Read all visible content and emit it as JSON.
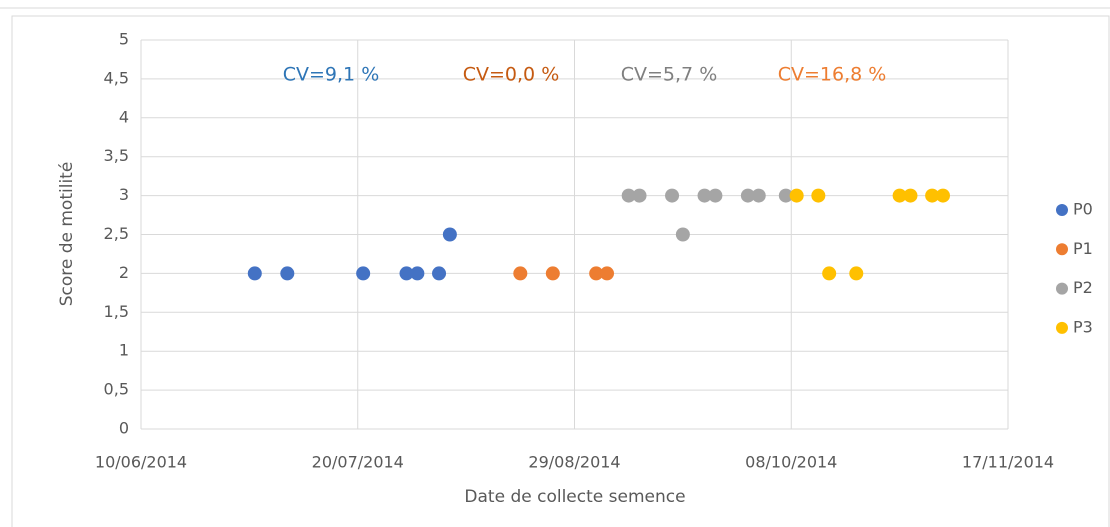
{
  "chart_data": {
    "type": "scatter",
    "y_label": "Score de motilité",
    "x_label": "Date de collecte semence",
    "xlim": [
      "2014-06-10",
      "2014-11-17"
    ],
    "xticks": [
      {
        "value": "2014-06-10",
        "label": "10/06/2014"
      },
      {
        "value": "2014-07-20",
        "label": "20/07/2014"
      },
      {
        "value": "2014-08-29",
        "label": "29/08/2014"
      },
      {
        "value": "2014-10-08",
        "label": "08/10/2014"
      },
      {
        "value": "2014-11-17",
        "label": "17/11/2014"
      }
    ],
    "ylim": [
      0,
      5
    ],
    "yticks": [
      0,
      {
        "value": 0.5,
        "label": "0,5"
      },
      1,
      {
        "value": 1.5,
        "label": "1,5"
      },
      2,
      {
        "value": 2.5,
        "label": "2,5"
      },
      3,
      {
        "value": 3.5,
        "label": "3,5"
      },
      4,
      {
        "value": 4.5,
        "label": "4,5"
      },
      5
    ],
    "grid": true,
    "legend": "right",
    "series": [
      {
        "name": "P0",
        "color": "#4472c4",
        "x": [
          "2014-07-01",
          "2014-07-07",
          "2014-07-21",
          "2014-07-29",
          "2014-07-31",
          "2014-08-04",
          "2014-08-06"
        ],
        "values": [
          2,
          2,
          2,
          2,
          2,
          2,
          2.5
        ]
      },
      {
        "name": "P1",
        "color": "#ed7d31",
        "x": [
          "2014-08-19",
          "2014-08-25",
          "2014-09-02",
          "2014-09-04"
        ],
        "values": [
          2,
          2,
          2,
          2
        ]
      },
      {
        "name": "P2",
        "color": "#a5a5a5",
        "x": [
          "2014-09-08",
          "2014-09-10",
          "2014-09-16",
          "2014-09-18",
          "2014-09-22",
          "2014-09-24",
          "2014-09-30",
          "2014-10-02",
          "2014-10-07"
        ],
        "values": [
          3,
          3,
          3,
          2.5,
          3,
          3,
          3,
          3,
          3
        ]
      },
      {
        "name": "P3",
        "color": "#ffc000",
        "x": [
          "2014-10-09",
          "2014-10-13",
          "2014-10-15",
          "2014-10-20",
          "2014-10-28",
          "2014-10-30",
          "2014-11-03",
          "2014-11-05"
        ],
        "values": [
          3,
          3,
          2,
          2,
          3,
          3,
          3,
          3
        ]
      }
    ],
    "annotations": [
      {
        "text": "CV=9,1 %",
        "color": "#2e75b6"
      },
      {
        "text": "CV=0,0 %",
        "color": "#c55a11"
      },
      {
        "text": "CV=5,7 %",
        "color": "#7f7f7f"
      },
      {
        "text": "CV=16,8 %",
        "color": "#ed7d31"
      }
    ]
  }
}
